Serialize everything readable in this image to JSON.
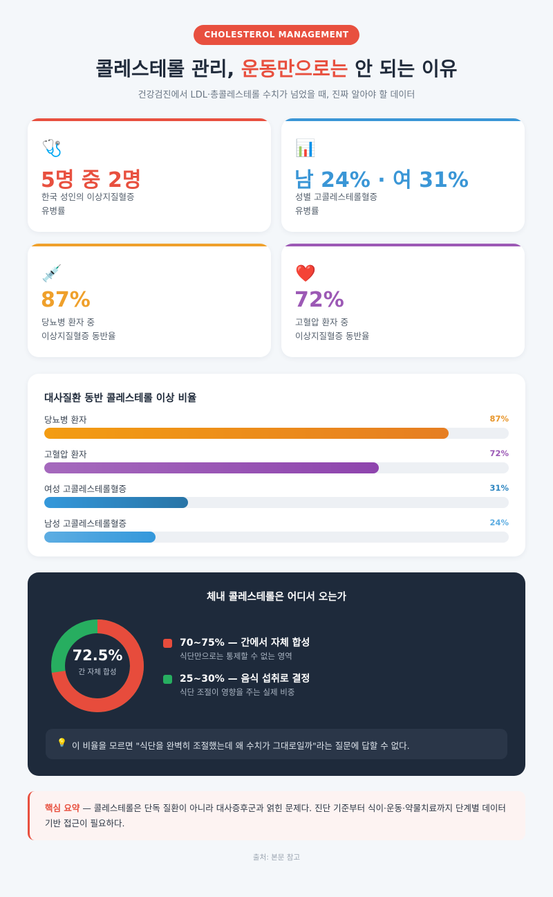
{
  "header": {
    "badge": "CHOLESTEROL MANAGEMENT",
    "title_pre": "콜레스테롤 관리, ",
    "title_highlight": "운동만으로는",
    "title_post": " 안 되는 이유",
    "subtitle": "건강검진에서 LDL·총콜레스테롤 수치가 넘었을 때, 진짜 알아야 할 데이터"
  },
  "stats": [
    {
      "icon": "stethoscope-icon",
      "glyph": "🩺",
      "value": "5명 중 2명",
      "line1": "한국 성인의 이상지질혈증",
      "line2": "유병률",
      "color": "#e8503f"
    },
    {
      "icon": "bar-chart-icon",
      "glyph": "📊",
      "value": "남 24% · 여 31%",
      "line1": "성별 고콜레스테롤혈증",
      "line2": "유병률",
      "color": "#3a96d6"
    },
    {
      "icon": "syringe-icon",
      "glyph": "💉",
      "value": "87%",
      "line1": "당뇨병 환자 중",
      "line2": "이상지질혈증 동반율",
      "color": "#efa02b"
    },
    {
      "icon": "heart-icon",
      "glyph": "❤️",
      "value": "72%",
      "line1": "고혈압 환자 중",
      "line2": "이상지질혈증 동반율",
      "color": "#9c59b5"
    }
  ],
  "bars_section": {
    "title": "대사질환 동반 콜레스테롤 이상 비율",
    "rows": [
      {
        "label": "당뇨병 환자",
        "value": 87,
        "display": "87%",
        "color": "#e8962b",
        "color_from": "#f39c12",
        "color_to": "#e67e22"
      },
      {
        "label": "고혈압 환자",
        "value": 72,
        "display": "72%",
        "color": "#9b59b6",
        "color_from": "#a569bd",
        "color_to": "#8e44ad"
      },
      {
        "label": "여성 고콜레스테롤혈증",
        "value": 31,
        "display": "31%",
        "color": "#2e86c1",
        "color_from": "#3498db",
        "color_to": "#2874a6"
      },
      {
        "label": "남성 고콜레스테롤혈증",
        "value": 24,
        "display": "24%",
        "color": "#5dade2",
        "color_from": "#5dade2",
        "color_to": "#3498db"
      }
    ]
  },
  "source_section": {
    "title": "체내 콜레스테롤은 어디서 오는가",
    "donut_value": "72.5%",
    "donut_caption": "간 자체 합성",
    "liver_share": 72.5,
    "liver_color": "#e74c3c",
    "diet_color": "#27ae60",
    "legend": [
      {
        "heading": "70~75% — 간에서 자체 합성",
        "sub": "식단만으로는 통제할 수 없는 영역",
        "color": "#e74c3c"
      },
      {
        "heading": "25~30% — 음식 섭취로 결정",
        "sub": "식단 조절이 영향을 주는 실제 비중",
        "color": "#27ae60"
      }
    ],
    "note_icon": "lightbulb-icon",
    "note_glyph": "💡",
    "note": "이 비율을 모르면 \"식단을 완벽히 조절했는데 왜 수치가 그대로일까\"라는 질문에 답할 수 없다."
  },
  "summary": {
    "key": "핵심 요약",
    "text": " — 콜레스테롤은 단독 질환이 아니라 대사증후군과 얽힌 문제다. 진단 기준부터 식이·운동·약물치료까지 단계별 데이터 기반 접근이 필요하다."
  },
  "footer": {
    "source": "출처: 본문 참고"
  }
}
